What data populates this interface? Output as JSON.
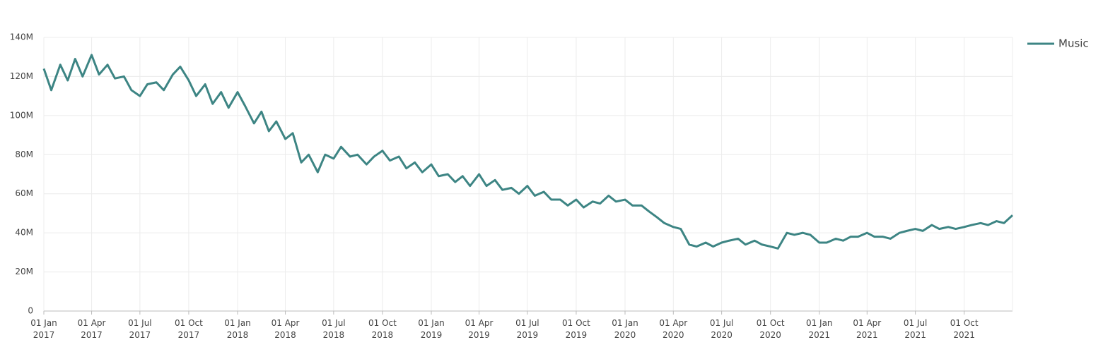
{
  "chart_data": {
    "type": "line",
    "x": [
      "2017-01-01",
      "2017-01-15",
      "2017-02-01",
      "2017-02-15",
      "2017-03-01",
      "2017-03-15",
      "2017-04-01",
      "2017-04-15",
      "2017-05-01",
      "2017-05-15",
      "2017-06-01",
      "2017-06-15",
      "2017-07-01",
      "2017-07-15",
      "2017-08-01",
      "2017-08-15",
      "2017-09-01",
      "2017-09-15",
      "2017-10-01",
      "2017-10-15",
      "2017-11-01",
      "2017-11-15",
      "2017-12-01",
      "2017-12-15",
      "2018-01-01",
      "2018-01-15",
      "2018-02-01",
      "2018-02-15",
      "2018-03-01",
      "2018-03-15",
      "2018-04-01",
      "2018-04-15",
      "2018-05-01",
      "2018-05-15",
      "2018-06-01",
      "2018-06-15",
      "2018-07-01",
      "2018-07-15",
      "2018-08-01",
      "2018-08-15",
      "2018-09-01",
      "2018-09-15",
      "2018-10-01",
      "2018-10-15",
      "2018-11-01",
      "2018-11-15",
      "2018-12-01",
      "2018-12-15",
      "2019-01-01",
      "2019-01-15",
      "2019-02-01",
      "2019-02-15",
      "2019-03-01",
      "2019-03-15",
      "2019-04-01",
      "2019-04-15",
      "2019-05-01",
      "2019-05-15",
      "2019-06-01",
      "2019-06-15",
      "2019-07-01",
      "2019-07-15",
      "2019-08-01",
      "2019-08-15",
      "2019-09-01",
      "2019-09-15",
      "2019-10-01",
      "2019-10-15",
      "2019-11-01",
      "2019-11-15",
      "2019-12-01",
      "2019-12-15",
      "2020-01-01",
      "2020-01-15",
      "2020-02-01",
      "2020-02-15",
      "2020-03-01",
      "2020-03-15",
      "2020-04-01",
      "2020-04-15",
      "2020-05-01",
      "2020-05-15",
      "2020-06-01",
      "2020-06-15",
      "2020-07-01",
      "2020-07-15",
      "2020-08-01",
      "2020-08-15",
      "2020-09-01",
      "2020-09-15",
      "2020-10-01",
      "2020-10-15",
      "2020-11-01",
      "2020-11-15",
      "2020-12-01",
      "2020-12-15",
      "2021-01-01",
      "2021-01-15",
      "2021-02-01",
      "2021-02-15",
      "2021-03-01",
      "2021-03-15",
      "2021-04-01",
      "2021-04-15",
      "2021-05-01",
      "2021-05-15",
      "2021-06-01",
      "2021-06-15",
      "2021-07-01",
      "2021-07-15",
      "2021-08-01",
      "2021-08-15",
      "2021-09-01",
      "2021-09-15",
      "2021-10-01",
      "2021-10-15",
      "2021-11-01",
      "2021-11-15",
      "2021-12-01",
      "2021-12-15",
      "2021-12-31"
    ],
    "series": [
      {
        "name": "Music",
        "color": "#3d8584",
        "values": [
          124,
          113,
          126,
          118,
          129,
          120,
          131,
          121,
          126,
          119,
          120,
          113,
          110,
          116,
          117,
          113,
          121,
          125,
          118,
          110,
          116,
          106,
          112,
          104,
          112,
          105,
          96,
          102,
          92,
          97,
          88,
          91,
          76,
          80,
          71,
          80,
          78,
          84,
          79,
          80,
          75,
          79,
          82,
          77,
          79,
          73,
          76,
          71,
          75,
          69,
          70,
          66,
          69,
          64,
          70,
          64,
          67,
          62,
          63,
          60,
          64,
          59,
          61,
          57,
          57,
          54,
          57,
          53,
          56,
          55,
          59,
          56,
          57,
          54,
          54,
          51,
          48,
          45,
          43,
          42,
          34,
          33,
          35,
          33,
          35,
          36,
          37,
          34,
          36,
          34,
          33,
          32,
          40,
          39,
          40,
          39,
          35,
          35,
          37,
          36,
          38,
          38,
          40,
          38,
          38,
          37,
          40,
          41,
          42,
          41,
          44,
          42,
          43,
          42,
          43,
          44,
          45,
          44,
          46,
          45,
          49
        ]
      }
    ],
    "xlim": [
      "2017-01-01",
      "2021-12-31"
    ],
    "xticks": [
      {
        "value": "2017-01-01",
        "label": "01 Jan 2017"
      },
      {
        "value": "2017-04-01",
        "label": "01 Apr 2017"
      },
      {
        "value": "2017-07-01",
        "label": "01 Jul 2017"
      },
      {
        "value": "2017-10-01",
        "label": "01 Oct 2017"
      },
      {
        "value": "2018-01-01",
        "label": "01 Jan 2018"
      },
      {
        "value": "2018-04-01",
        "label": "01 Apr 2018"
      },
      {
        "value": "2018-07-01",
        "label": "01 Jul 2018"
      },
      {
        "value": "2018-10-01",
        "label": "01 Oct 2018"
      },
      {
        "value": "2019-01-01",
        "label": "01 Jan 2019"
      },
      {
        "value": "2019-04-01",
        "label": "01 Apr 2019"
      },
      {
        "value": "2019-07-01",
        "label": "01 Jul 2019"
      },
      {
        "value": "2019-10-01",
        "label": "01 Oct 2019"
      },
      {
        "value": "2020-01-01",
        "label": "01 Jan 2020"
      },
      {
        "value": "2020-04-01",
        "label": "01 Apr 2020"
      },
      {
        "value": "2020-07-01",
        "label": "01 Jul 2020"
      },
      {
        "value": "2020-10-01",
        "label": "01 Oct 2020"
      },
      {
        "value": "2021-01-01",
        "label": "01 Jan 2021"
      },
      {
        "value": "2021-04-01",
        "label": "01 Apr 2021"
      },
      {
        "value": "2021-07-01",
        "label": "01 Jul 2021"
      },
      {
        "value": "2021-10-01",
        "label": "01 Oct 2021"
      }
    ],
    "ylim": [
      0,
      140
    ],
    "yticks": [
      0,
      {
        "value": 20,
        "label": "20M"
      },
      {
        "value": 40,
        "label": "40M"
      },
      {
        "value": 60,
        "label": "60M"
      },
      {
        "value": 80,
        "label": "80M"
      },
      {
        "value": 100,
        "label": "100M"
      },
      {
        "value": 120,
        "label": "120M"
      },
      {
        "value": 140,
        "label": "140M"
      }
    ],
    "grid": true,
    "legend": "top-right"
  }
}
